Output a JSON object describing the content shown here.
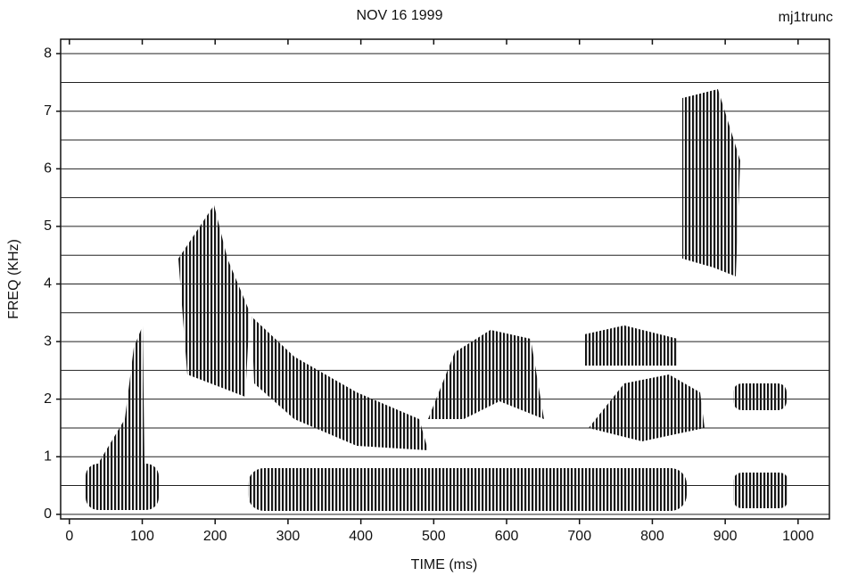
{
  "chart_data": {
    "type": "spectrogram",
    "title": "NOV 16 1999",
    "corner_label": "mj1trunc",
    "x_label": "TIME (ms)",
    "y_label": "FREQ (KHz)",
    "xlim": [
      -12,
      1043
    ],
    "ylim": [
      -0.08,
      8.25
    ],
    "xticks": [
      0,
      100,
      200,
      300,
      400,
      500,
      600,
      700,
      800,
      900,
      1000
    ],
    "yticks": [
      0,
      1,
      2,
      3,
      4,
      5,
      6,
      7,
      8
    ],
    "ygrid": [
      0,
      0.5,
      1,
      1.5,
      2,
      2.5,
      3,
      3.5,
      4,
      4.5,
      5,
      5.5,
      6,
      6.5,
      7,
      7.5,
      8
    ],
    "grid": true
  }
}
